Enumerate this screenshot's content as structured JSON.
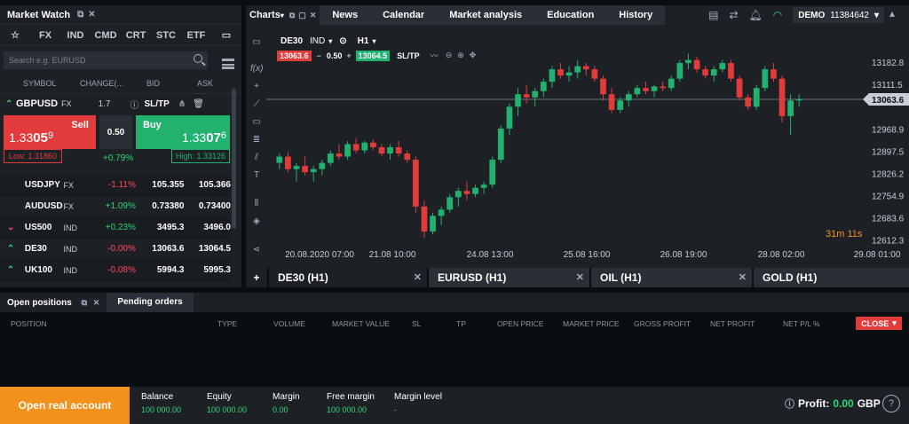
{
  "market_watch": {
    "title": "Market Watch",
    "tabs": [
      "☆",
      "FX",
      "IND",
      "CMD",
      "CRT",
      "STC",
      "ETF"
    ],
    "search_placeholder": "Search e.g. EURUSD",
    "columns": [
      "SYMBOL",
      "CHANGE(...",
      "BID",
      "ASK"
    ],
    "selected": {
      "symbol": "GBPUSD",
      "type": "FX",
      "spread": "1.7",
      "sltp": "SL/TP",
      "sell_label": "Sell",
      "sell_price_main": "1.33",
      "sell_price_big": "05",
      "sell_price_small": "9",
      "lot": "0.50",
      "buy_label": "Buy",
      "buy_price_main": "1.33",
      "buy_price_big": "07",
      "buy_price_small": "6",
      "low": "Low: 1.31860",
      "change": "+0.79%",
      "high": "High: 1.33126"
    },
    "rows": [
      {
        "arrow": "",
        "symbol": "USDJPY",
        "type": "FX",
        "change": "-1.11%",
        "dir": "dn",
        "bid": "105.355",
        "ask": "105.366"
      },
      {
        "arrow": "",
        "symbol": "AUDUSD",
        "type": "FX",
        "change": "+1.09%",
        "dir": "up",
        "bid": "0.73380",
        "ask": "0.73400"
      },
      {
        "arrow": "⌄",
        "symbol": "US500",
        "type": "IND",
        "change": "+0.23%",
        "dir": "up",
        "bid": "3495.3",
        "ask": "3496.0"
      },
      {
        "arrow": "⌃",
        "symbol": "DE30",
        "type": "IND",
        "change": "-0.00%",
        "dir": "dn",
        "bid": "13063.6",
        "ask": "13064.5"
      },
      {
        "arrow": "⌃",
        "symbol": "UK100",
        "type": "IND",
        "change": "-0.08%",
        "dir": "dn",
        "bid": "5994.3",
        "ask": "5995.3"
      }
    ]
  },
  "top_tabs": [
    "Charts",
    "News",
    "Calendar",
    "Market analysis",
    "Education",
    "History"
  ],
  "account": {
    "mode": "DEMO",
    "number": "11384642"
  },
  "chart": {
    "symbol": "DE30",
    "symbol_type": "IND",
    "timeframe": "H1",
    "sell_price": "13063.6",
    "volume": "0.50",
    "buy_price": "13064.5",
    "sltp": "SL/TP",
    "current_price": "13063.6",
    "countdown": "31m 11s",
    "y_ticks": [
      "13182.8",
      "13111.5",
      "13040.2",
      "12968.9",
      "12897.5",
      "12826.2",
      "12754.9",
      "12683.6",
      "12612.3"
    ],
    "x_ticks": [
      "20.08.2020 07:00",
      "21.08 10:00",
      "24.08 13:00",
      "25.08 16:00",
      "26.08 19:00",
      "28.08 02:00",
      "29.08 01:00"
    ]
  },
  "chart_data": {
    "type": "candlestick",
    "ylim": [
      12600,
      13240
    ],
    "candles": [
      [
        12860,
        12890,
        12840,
        12880
      ],
      [
        12880,
        12895,
        12830,
        12840
      ],
      [
        12840,
        12860,
        12800,
        12850
      ],
      [
        12850,
        12880,
        12820,
        12830
      ],
      [
        12830,
        12850,
        12800,
        12840
      ],
      [
        12840,
        12870,
        12820,
        12860
      ],
      [
        12860,
        12900,
        12850,
        12890
      ],
      [
        12890,
        12920,
        12870,
        12880
      ],
      [
        12880,
        12930,
        12870,
        12920
      ],
      [
        12920,
        12940,
        12890,
        12900
      ],
      [
        12900,
        12930,
        12890,
        12925
      ],
      [
        12925,
        12935,
        12900,
        12910
      ],
      [
        12910,
        12920,
        12880,
        12890
      ],
      [
        12890,
        12920,
        12870,
        12910
      ],
      [
        12910,
        12930,
        12880,
        12890
      ],
      [
        12890,
        12900,
        12860,
        12870
      ],
      [
        12870,
        12880,
        12700,
        12720
      ],
      [
        12720,
        12740,
        12620,
        12640
      ],
      [
        12640,
        12700,
        12630,
        12690
      ],
      [
        12690,
        12720,
        12660,
        12710
      ],
      [
        12710,
        12760,
        12700,
        12750
      ],
      [
        12750,
        12780,
        12720,
        12770
      ],
      [
        12770,
        12800,
        12740,
        12760
      ],
      [
        12760,
        12790,
        12750,
        12780
      ],
      [
        12780,
        12800,
        12760,
        12790
      ],
      [
        12790,
        12880,
        12780,
        12870
      ],
      [
        12870,
        12980,
        12860,
        12970
      ],
      [
        12970,
        13050,
        12950,
        13040
      ],
      [
        13040,
        13100,
        13010,
        13080
      ],
      [
        13080,
        13110,
        13050,
        13070
      ],
      [
        13070,
        13100,
        13040,
        13090
      ],
      [
        13090,
        13130,
        13070,
        13120
      ],
      [
        13120,
        13170,
        13100,
        13160
      ],
      [
        13160,
        13180,
        13130,
        13140
      ],
      [
        13140,
        13170,
        13120,
        13150
      ],
      [
        13150,
        13190,
        13130,
        13170
      ],
      [
        13170,
        13180,
        13140,
        13160
      ],
      [
        13160,
        13170,
        13120,
        13130
      ],
      [
        13130,
        13140,
        13060,
        13080
      ],
      [
        13080,
        13100,
        13020,
        13030
      ],
      [
        13030,
        13070,
        13020,
        13060
      ],
      [
        13060,
        13090,
        13040,
        13080
      ],
      [
        13080,
        13110,
        13070,
        13100
      ],
      [
        13100,
        13120,
        13080,
        13090
      ],
      [
        13090,
        13110,
        13070,
        13105
      ],
      [
        13105,
        13120,
        13090,
        13100
      ],
      [
        13100,
        13140,
        13090,
        13130
      ],
      [
        13130,
        13190,
        13120,
        13180
      ],
      [
        13180,
        13210,
        13160,
        13190
      ],
      [
        13190,
        13200,
        13150,
        13160
      ],
      [
        13160,
        13170,
        13130,
        13140
      ],
      [
        13140,
        13170,
        13120,
        13160
      ],
      [
        13160,
        13190,
        13150,
        13180
      ],
      [
        13180,
        13190,
        13120,
        13130
      ],
      [
        13130,
        13140,
        13060,
        13070
      ],
      [
        13070,
        13080,
        13030,
        13040
      ],
      [
        13040,
        13110,
        13030,
        13100
      ],
      [
        13100,
        13170,
        13090,
        13160
      ],
      [
        13160,
        13180,
        13120,
        13130
      ],
      [
        13130,
        13140,
        12990,
        13010
      ],
      [
        13010,
        13080,
        12950,
        13060
      ],
      [
        13060,
        13080,
        13040,
        13065
      ]
    ]
  },
  "chart_tabs": [
    "DE30 (H1)",
    "EURUSD (H1)",
    "OIL (H1)",
    "GOLD (H1)"
  ],
  "positions": {
    "tabs": [
      "Open positions",
      "Pending orders"
    ],
    "columns": [
      "POSITION",
      "TYPE",
      "VOLUME",
      "MARKET VALUE",
      "SL",
      "TP",
      "OPEN PRICE",
      "MARKET PRICE",
      "GROSS PROFIT",
      "NET PROFIT",
      "NET P/L %"
    ],
    "close_label": "CLOSE"
  },
  "footer": {
    "open_real": "Open real account",
    "stats": [
      {
        "label": "Balance",
        "value": "100 000.00"
      },
      {
        "label": "Equity",
        "value": "100 000.00"
      },
      {
        "label": "Margin",
        "value": "0.00"
      },
      {
        "label": "Free margin",
        "value": "100 000.00"
      },
      {
        "label": "Margin level",
        "value": "-"
      }
    ],
    "profit_label": "Profit:",
    "profit_value": "0.00",
    "profit_currency": "GBP"
  }
}
